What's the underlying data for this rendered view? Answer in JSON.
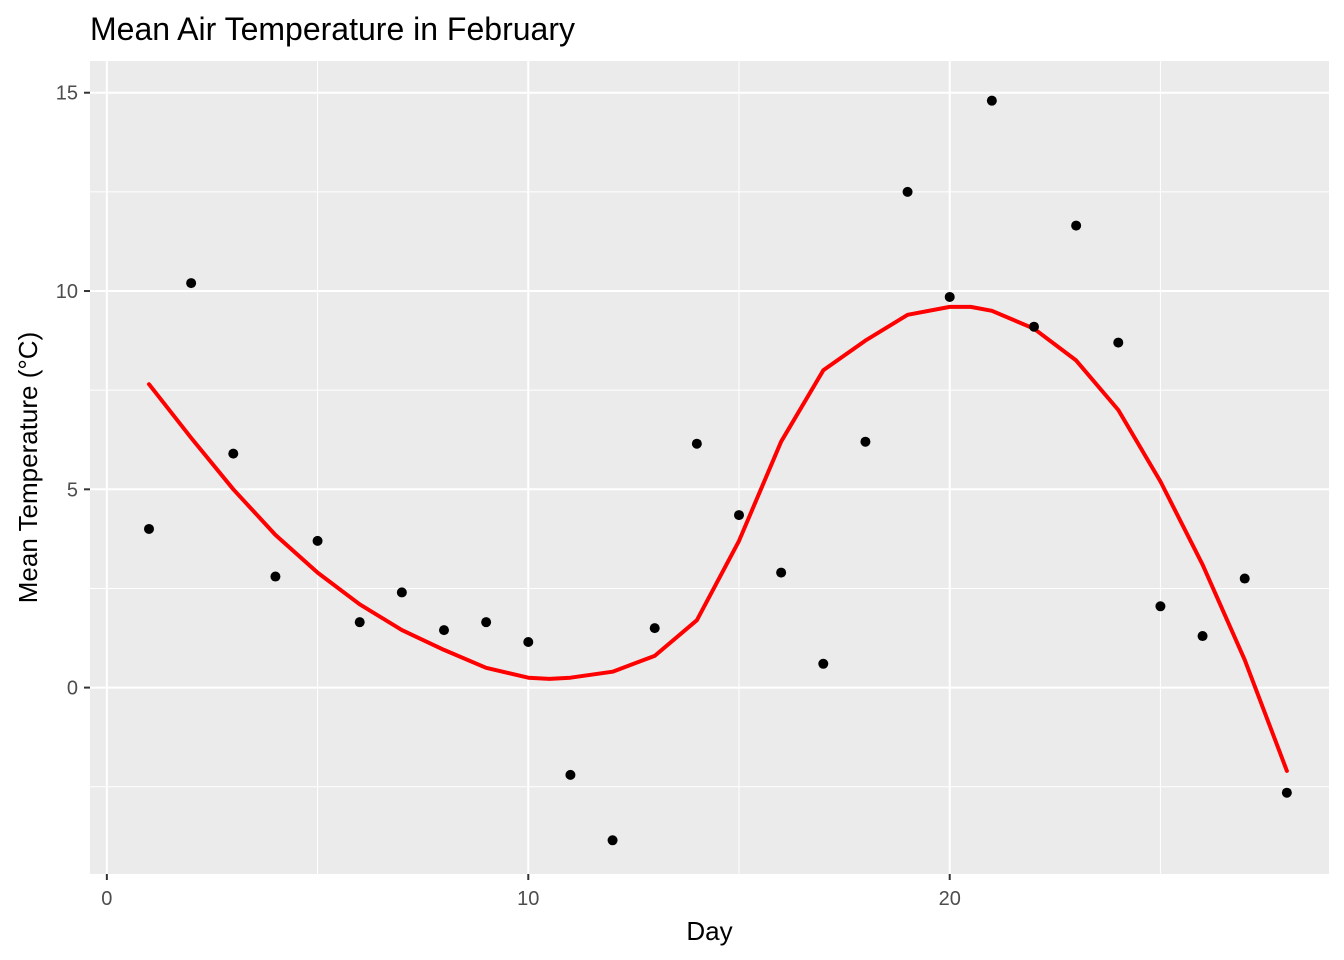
{
  "chart_data": {
    "type": "scatter",
    "title": "Mean Air Temperature in February",
    "xlabel": "Day",
    "ylabel": "Mean Temperature (°C)",
    "xlim": [
      -0.4,
      29.0
    ],
    "ylim": [
      -4.7,
      15.8
    ],
    "x_ticks": [
      0,
      10,
      20
    ],
    "x_tick_labels": [
      "0",
      "10",
      "20"
    ],
    "y_ticks": [
      0,
      5,
      10,
      15
    ],
    "y_tick_labels": [
      "0",
      "5",
      "10",
      "15"
    ],
    "grid": true,
    "panel_background": "#ebebeb",
    "point_color": "#000000",
    "smooth_color": "#ff0000",
    "points": {
      "x": [
        1,
        2,
        3,
        4,
        5,
        6,
        7,
        8,
        9,
        10,
        11,
        12,
        13,
        14,
        15,
        16,
        17,
        18,
        19,
        20,
        21,
        22,
        23,
        24,
        25,
        26,
        27,
        28
      ],
      "y": [
        4.0,
        10.2,
        5.9,
        2.8,
        3.7,
        1.65,
        2.4,
        1.45,
        1.65,
        1.15,
        -2.2,
        -3.85,
        1.5,
        6.15,
        4.35,
        2.9,
        0.6,
        6.2,
        12.5,
        9.85,
        14.8,
        9.1,
        11.65,
        8.7,
        2.05,
        1.3,
        2.75,
        -2.65
      ]
    },
    "smooth": {
      "x": [
        1,
        2,
        3,
        4,
        5,
        6,
        7,
        8,
        9,
        10,
        10.5,
        11,
        12,
        13,
        14,
        15,
        16,
        17,
        18,
        19,
        20,
        20.5,
        21,
        22,
        23,
        24,
        25,
        26,
        27,
        28
      ],
      "y": [
        7.65,
        6.3,
        5.0,
        3.85,
        2.9,
        2.1,
        1.45,
        0.95,
        0.5,
        0.25,
        0.22,
        0.25,
        0.4,
        0.8,
        1.7,
        3.7,
        6.2,
        8.0,
        8.75,
        9.4,
        9.6,
        9.6,
        9.5,
        9.05,
        8.25,
        7.0,
        5.2,
        3.1,
        0.7,
        -2.1
      ]
    }
  }
}
